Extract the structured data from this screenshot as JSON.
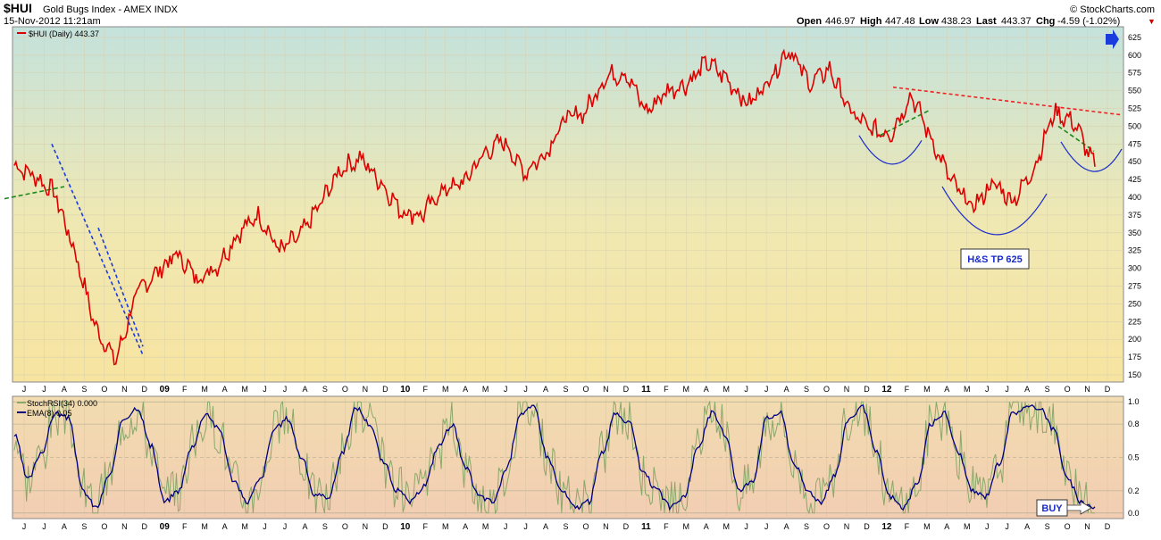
{
  "header": {
    "symbol": "$HUI",
    "name": "Gold Bugs Index - AMEX  INDX",
    "datetime": "15-Nov-2012 11:21am",
    "copyright": "© StockCharts.com",
    "quote": {
      "open_label": "Open",
      "open": "446.97",
      "high_label": "High",
      "high": "447.48",
      "low_label": "Low",
      "low": "438.23",
      "last_label": "Last",
      "last": "443.37",
      "chg_label": "Chg",
      "chg": "-4.59 (-1.02%)",
      "chg_arrow": "▼"
    }
  },
  "colors": {
    "price_line": "#dd0000",
    "ema_line": "#000080",
    "stochrsi_line": "#8aa86a",
    "trend_green": "#1a8a1a",
    "trend_blue": "#1a3cdd",
    "trend_red": "#ee2222",
    "arc": "#1a2ccc",
    "blue_arrow": "#1a3cdd"
  },
  "annotations": {
    "target_label": "H&S TP 625",
    "buy_label": "BUY"
  },
  "chart_data": [
    {
      "type": "line",
      "legend": "$HUI (Daily) 443.37",
      "x_tick_labels": [
        "J",
        "J",
        "A",
        "S",
        "O",
        "N",
        "D",
        "09",
        "F",
        "M",
        "A",
        "M",
        "J",
        "J",
        "A",
        "S",
        "O",
        "N",
        "D",
        "10",
        "F",
        "M",
        "A",
        "M",
        "J",
        "J",
        "A",
        "S",
        "O",
        "N",
        "D",
        "11",
        "F",
        "M",
        "A",
        "M",
        "J",
        "J",
        "A",
        "S",
        "O",
        "N",
        "D",
        "12",
        "F",
        "M",
        "A",
        "M",
        "J",
        "J",
        "A",
        "S",
        "O",
        "N",
        "D"
      ],
      "ylim": [
        140,
        640
      ],
      "y_ticks": [
        150,
        175,
        200,
        225,
        250,
        275,
        300,
        325,
        350,
        375,
        400,
        425,
        450,
        475,
        500,
        525,
        550,
        575,
        600,
        625
      ],
      "series": [
        {
          "name": "$HUI (Daily)",
          "x": [
            "2008-06",
            "2008-07",
            "2008-08",
            "2008-09",
            "2008-10",
            "2008-11",
            "2008-12",
            "2009-01",
            "2009-02",
            "2009-03",
            "2009-04",
            "2009-05",
            "2009-06",
            "2009-07",
            "2009-08",
            "2009-09",
            "2009-10",
            "2009-11",
            "2009-12",
            "2010-01",
            "2010-02",
            "2010-03",
            "2010-04",
            "2010-05",
            "2010-06",
            "2010-07",
            "2010-08",
            "2010-09",
            "2010-10",
            "2010-11",
            "2010-12",
            "2011-01",
            "2011-02",
            "2011-03",
            "2011-04",
            "2011-05",
            "2011-06",
            "2011-07",
            "2011-08",
            "2011-09",
            "2011-10",
            "2011-11",
            "2011-12",
            "2012-01",
            "2012-02",
            "2012-03",
            "2012-04",
            "2012-05",
            "2012-06",
            "2012-07",
            "2012-08",
            "2012-09",
            "2012-10",
            "2012-11"
          ],
          "values": [
            445,
            430,
            405,
            320,
            215,
            170,
            265,
            295,
            320,
            285,
            305,
            350,
            375,
            325,
            345,
            390,
            440,
            455,
            420,
            380,
            375,
            410,
            420,
            460,
            480,
            435,
            460,
            510,
            520,
            570,
            575,
            520,
            550,
            560,
            590,
            565,
            530,
            565,
            610,
            560,
            580,
            520,
            495,
            490,
            545,
            480,
            420,
            385,
            420,
            395,
            440,
            520,
            505,
            443
          ]
        }
      ]
    },
    {
      "type": "line",
      "legend": [
        "StochRSI(34) 0.000",
        "EMA(8) 0.05"
      ],
      "ylim": [
        -0.05,
        1.05
      ],
      "y_ticks": [
        "1.0",
        "0.8",
        "0.5",
        "0.2",
        "0.0"
      ],
      "x_tick_labels": [
        "J",
        "J",
        "A",
        "S",
        "O",
        "N",
        "D",
        "09",
        "F",
        "M",
        "A",
        "M",
        "J",
        "J",
        "A",
        "S",
        "O",
        "N",
        "D",
        "10",
        "F",
        "M",
        "A",
        "M",
        "J",
        "J",
        "A",
        "S",
        "O",
        "N",
        "D",
        "11",
        "F",
        "M",
        "A",
        "M",
        "J",
        "J",
        "A",
        "S",
        "O",
        "N",
        "D",
        "12",
        "F",
        "M",
        "A",
        "M",
        "J",
        "J",
        "A",
        "S",
        "O",
        "N",
        "D"
      ],
      "series": [
        {
          "name": "EMA(8)",
          "values": [
            0.7,
            0.3,
            0.55,
            0.9,
            0.85,
            0.2,
            0.05,
            0.35,
            0.85,
            0.95,
            0.6,
            0.1,
            0.2,
            0.6,
            0.9,
            0.75,
            0.3,
            0.1,
            0.3,
            0.75,
            0.85,
            0.5,
            0.15,
            0.15,
            0.55,
            0.95,
            0.8,
            0.45,
            0.2,
            0.1,
            0.25,
            0.6,
            0.8,
            0.4,
            0.15,
            0.1,
            0.4,
            0.9,
            0.95,
            0.5,
            0.2,
            0.05,
            0.1,
            0.55,
            0.9,
            0.8,
            0.35,
            0.2,
            0.05,
            0.15,
            0.6,
            0.9,
            0.7,
            0.2,
            0.3,
            0.85,
            0.9,
            0.45,
            0.2,
            0.1,
            0.35,
            0.85,
            0.95,
            0.55,
            0.15,
            0.05,
            0.25,
            0.8,
            0.9,
            0.55,
            0.2,
            0.15,
            0.45,
            0.9,
            0.95,
            0.95,
            0.75,
            0.3,
            0.1,
            0.05
          ]
        }
      ]
    }
  ]
}
